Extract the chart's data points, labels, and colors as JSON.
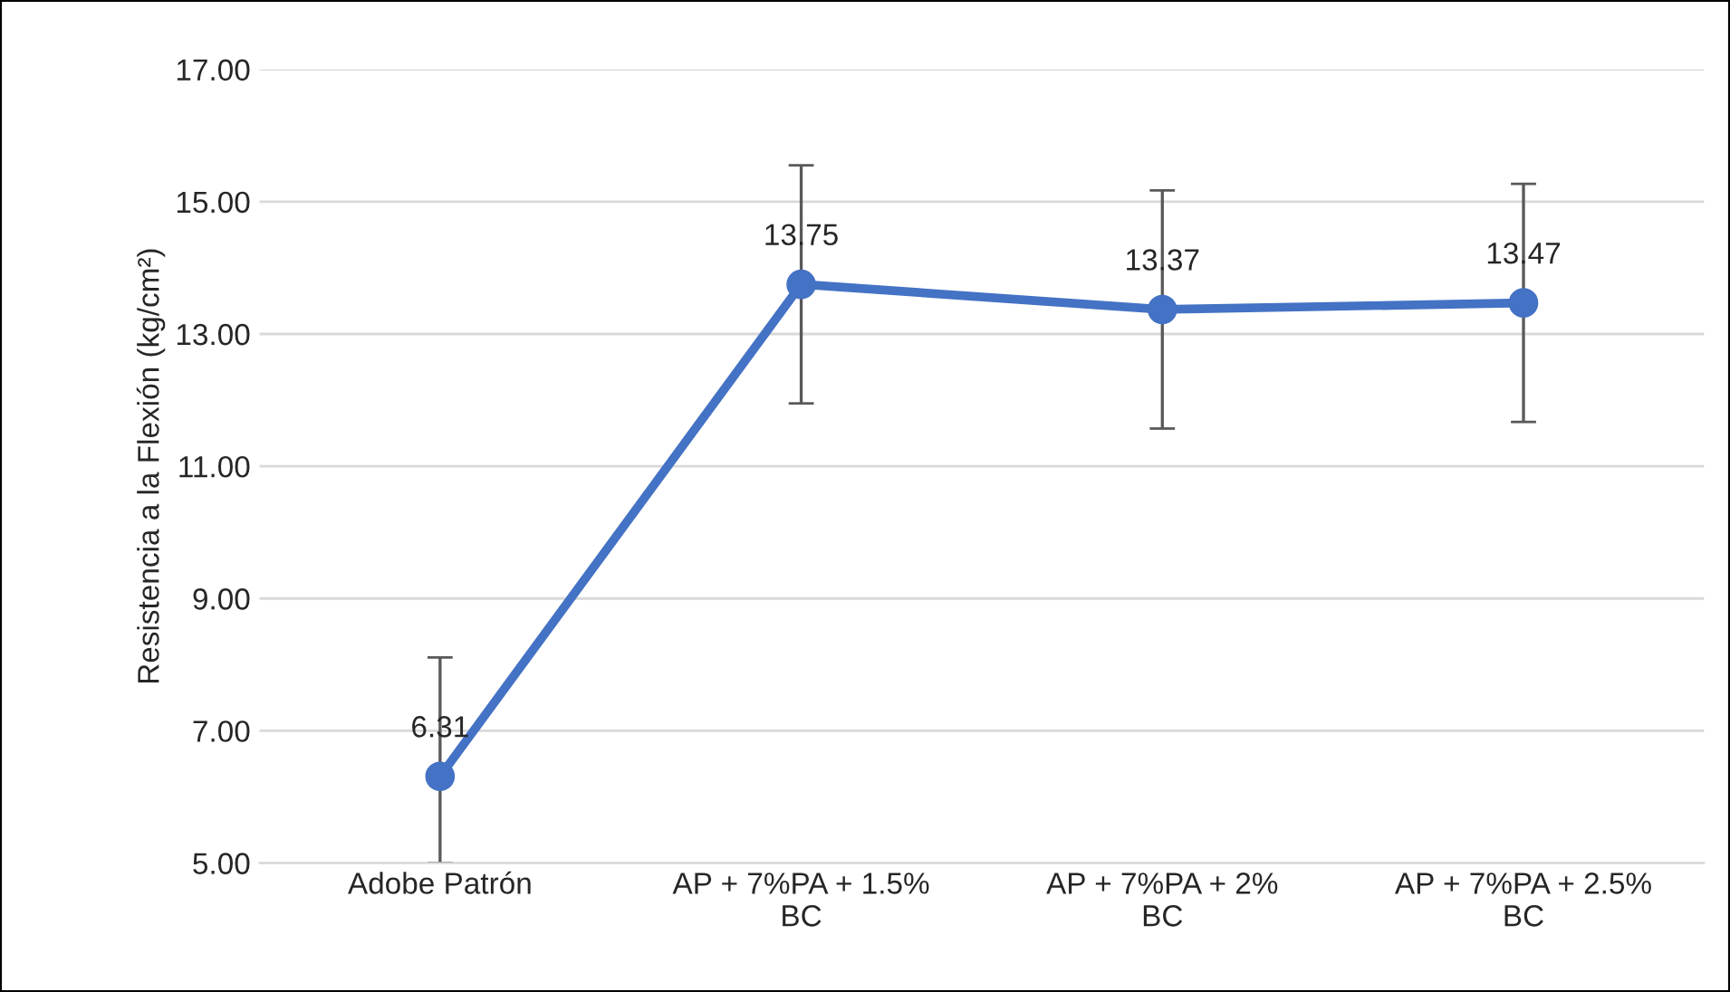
{
  "chart_data": {
    "type": "line",
    "ylabel": "Resistencia a la Flexión (kg/cm²)",
    "categories": [
      "Adobe Patrón",
      "AP + 7%PA + 1.5%\nBC",
      "AP + 7%PA + 2%\nBC",
      "AP + 7%PA + 2.5%\nBC"
    ],
    "series": [
      {
        "color": "#4472c4",
        "values": [
          6.31,
          13.75,
          13.37,
          13.47
        ],
        "errors": [
          [
            5.0,
            8.11
          ],
          1.8,
          1.8,
          1.8
        ]
      }
    ],
    "ylim": [
      5,
      17
    ],
    "yticks": [
      {
        "value": 5,
        "label": "5.00"
      },
      {
        "value": 7,
        "label": "7.00"
      },
      {
        "value": 9,
        "label": "9.00"
      },
      {
        "value": 11,
        "label": "11.00"
      },
      {
        "value": 13,
        "label": "13.00"
      },
      {
        "value": 15,
        "label": "15.00"
      },
      {
        "value": 17,
        "label": "17.00"
      }
    ],
    "grid": "y",
    "marker": "circle",
    "line_style": "solid",
    "data_labels": true
  }
}
